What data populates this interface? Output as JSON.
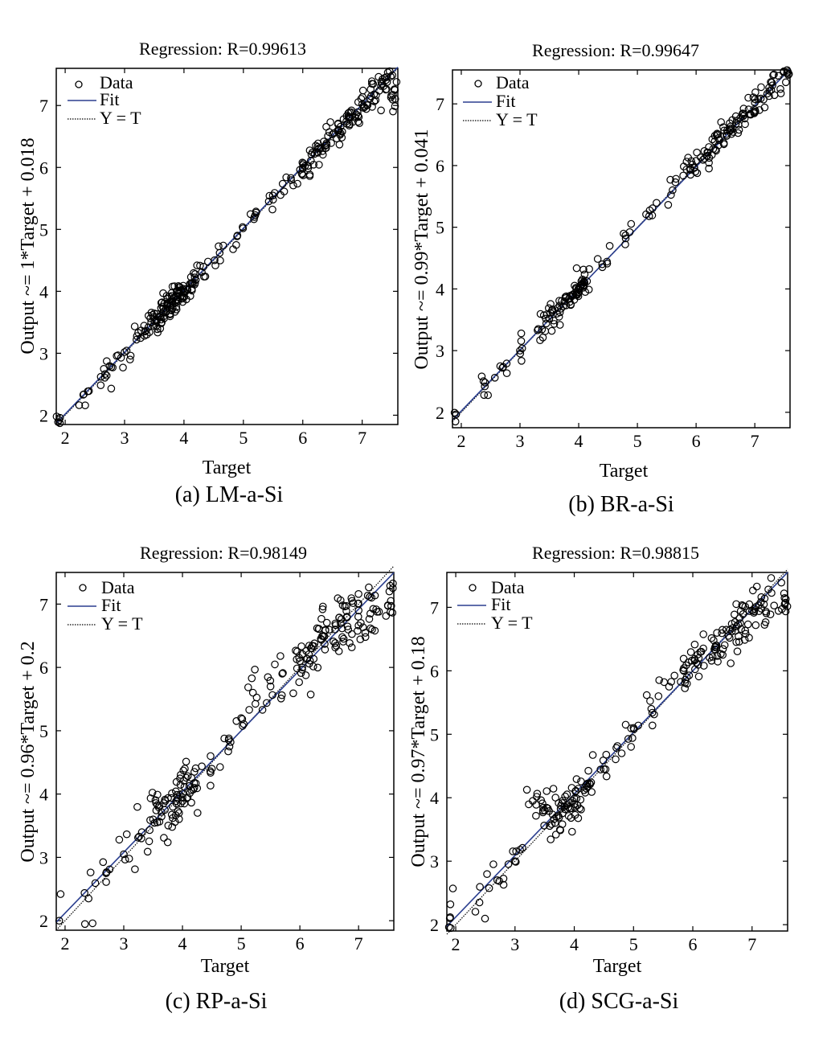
{
  "chart_data": [
    {
      "type": "scatter",
      "title": "Regression: R=0.99613",
      "caption": "(a) LM-a-Si",
      "xlabel": "Target",
      "ylabel": "Output ~= 1*Target + 0.018",
      "xlim": [
        1.85,
        7.6
      ],
      "ylim": [
        1.85,
        7.6
      ],
      "xticks": [
        2,
        3,
        4,
        5,
        6,
        7
      ],
      "yticks": [
        2,
        3,
        4,
        5,
        6,
        7
      ],
      "legend_position": "top-left",
      "fit": {
        "slope": 1.0,
        "intercept": 0.018
      },
      "series": [
        {
          "name": "Data",
          "points": [
            [
              1.88,
              1.89
            ],
            [
              2.4,
              2.39
            ],
            [
              2.6,
              2.62
            ],
            [
              2.8,
              2.77
            ],
            [
              3.0,
              3.02
            ],
            [
              3.2,
              3.22
            ],
            [
              3.4,
              3.42
            ],
            [
              3.5,
              3.52
            ],
            [
              3.6,
              3.58
            ],
            [
              3.7,
              3.72
            ],
            [
              3.8,
              3.78
            ],
            [
              3.9,
              3.91
            ],
            [
              4.0,
              4.0
            ],
            [
              4.1,
              4.12
            ],
            [
              4.3,
              4.31
            ],
            [
              4.6,
              4.62
            ],
            [
              4.9,
              4.9
            ],
            [
              5.2,
              5.23
            ],
            [
              5.5,
              5.48
            ],
            [
              5.8,
              5.83
            ],
            [
              6.0,
              5.98
            ],
            [
              6.2,
              6.22
            ],
            [
              6.4,
              6.39
            ],
            [
              6.6,
              6.61
            ],
            [
              6.8,
              6.8
            ],
            [
              7.0,
              7.02
            ],
            [
              7.2,
              7.18
            ],
            [
              7.4,
              7.41
            ],
            [
              7.55,
              7.25
            ]
          ]
        },
        {
          "name": "Fit"
        },
        {
          "name": "Y = T"
        }
      ],
      "cluster_spread": 0.12
    },
    {
      "type": "scatter",
      "title": "Regression: R=0.99647",
      "caption": "(b) BR-a-Si",
      "xlabel": "Target",
      "ylabel": "Output ~= 0.99*Target + 0.041",
      "xlim": [
        1.85,
        7.6
      ],
      "ylim": [
        1.75,
        7.55
      ],
      "xticks": [
        2,
        3,
        4,
        5,
        6,
        7
      ],
      "yticks": [
        2,
        3,
        4,
        5,
        6,
        7
      ],
      "legend_position": "top-left",
      "fit": {
        "slope": 0.99,
        "intercept": 0.041
      },
      "series": [
        {
          "name": "Data",
          "points": [
            [
              1.9,
              1.85
            ],
            [
              2.4,
              2.42
            ],
            [
              2.7,
              2.72
            ],
            [
              3.0,
              3.0
            ],
            [
              3.3,
              3.33
            ],
            [
              3.5,
              3.52
            ],
            [
              3.7,
              3.68
            ],
            [
              3.9,
              3.9
            ],
            [
              4.0,
              4.01
            ],
            [
              4.1,
              4.1
            ],
            [
              4.4,
              4.4
            ],
            [
              4.8,
              4.82
            ],
            [
              5.2,
              5.18
            ],
            [
              5.6,
              5.6
            ],
            [
              5.9,
              5.93
            ],
            [
              6.2,
              6.21
            ],
            [
              6.4,
              6.41
            ],
            [
              6.6,
              6.58
            ],
            [
              6.8,
              6.8
            ],
            [
              7.0,
              7.02
            ],
            [
              7.3,
              7.3
            ],
            [
              7.55,
              7.5
            ]
          ]
        },
        {
          "name": "Fit"
        },
        {
          "name": "Y = T"
        }
      ],
      "cluster_spread": 0.11
    },
    {
      "type": "scatter",
      "title": "Regression: R=0.98149",
      "caption": "(c) RP-a-Si",
      "xlabel": "Target",
      "ylabel": "Output ~= 0.96*Target + 0.2",
      "xlim": [
        1.85,
        7.6
      ],
      "ylim": [
        1.85,
        7.5
      ],
      "xticks": [
        2,
        3,
        4,
        5,
        6,
        7
      ],
      "yticks": [
        2,
        3,
        4,
        5,
        6,
        7
      ],
      "legend_position": "top-left",
      "fit": {
        "slope": 0.96,
        "intercept": 0.2
      },
      "series": [
        {
          "name": "Data",
          "points": [
            [
              1.9,
              2.0
            ],
            [
              2.4,
              2.35
            ],
            [
              2.7,
              2.75
            ],
            [
              3.0,
              3.05
            ],
            [
              3.3,
              3.3
            ],
            [
              3.5,
              3.6
            ],
            [
              3.7,
              3.75
            ],
            [
              3.9,
              3.85
            ],
            [
              4.0,
              3.95
            ],
            [
              4.2,
              4.1
            ],
            [
              4.5,
              4.4
            ],
            [
              4.8,
              4.75
            ],
            [
              5.0,
              5.2
            ],
            [
              5.2,
              5.6
            ],
            [
              5.5,
              5.7
            ],
            [
              5.7,
              5.9
            ],
            [
              6.0,
              6.1
            ],
            [
              6.2,
              6.3
            ],
            [
              6.4,
              6.5
            ],
            [
              6.6,
              6.6
            ],
            [
              6.8,
              6.8
            ],
            [
              7.0,
              6.9
            ],
            [
              7.2,
              6.85
            ],
            [
              7.55,
              7.05
            ]
          ]
        },
        {
          "name": "Fit"
        },
        {
          "name": "Y = T"
        }
      ],
      "cluster_spread": 0.25
    },
    {
      "type": "scatter",
      "title": "Regression: R=0.98815",
      "caption": "(d) SCG-a-Si",
      "xlabel": "Target",
      "ylabel": "Output ~= 0.97*Target + 0.18",
      "xlim": [
        1.85,
        7.6
      ],
      "ylim": [
        1.9,
        7.55
      ],
      "xticks": [
        2,
        3,
        4,
        5,
        6,
        7
      ],
      "yticks": [
        2,
        3,
        4,
        5,
        6,
        7
      ],
      "legend_position": "top-left",
      "fit": {
        "slope": 0.97,
        "intercept": 0.18
      },
      "series": [
        {
          "name": "Data",
          "points": [
            [
              1.9,
              2.1
            ],
            [
              2.4,
              2.35
            ],
            [
              2.7,
              2.7
            ],
            [
              3.0,
              3.0
            ],
            [
              3.3,
              3.95
            ],
            [
              3.5,
              3.8
            ],
            [
              3.7,
              3.7
            ],
            [
              3.9,
              3.85
            ],
            [
              4.0,
              3.9
            ],
            [
              4.2,
              4.2
            ],
            [
              4.5,
              4.45
            ],
            [
              4.8,
              4.7
            ],
            [
              5.0,
              5.1
            ],
            [
              5.3,
              5.4
            ],
            [
              5.6,
              5.75
            ],
            [
              5.9,
              5.9
            ],
            [
              6.1,
              6.2
            ],
            [
              6.4,
              6.4
            ],
            [
              6.6,
              6.55
            ],
            [
              6.8,
              6.75
            ],
            [
              7.0,
              6.95
            ],
            [
              7.2,
              7.05
            ],
            [
              7.55,
              7.05
            ]
          ]
        },
        {
          "name": "Fit"
        },
        {
          "name": "Y = T"
        }
      ],
      "cluster_spread": 0.18
    }
  ]
}
